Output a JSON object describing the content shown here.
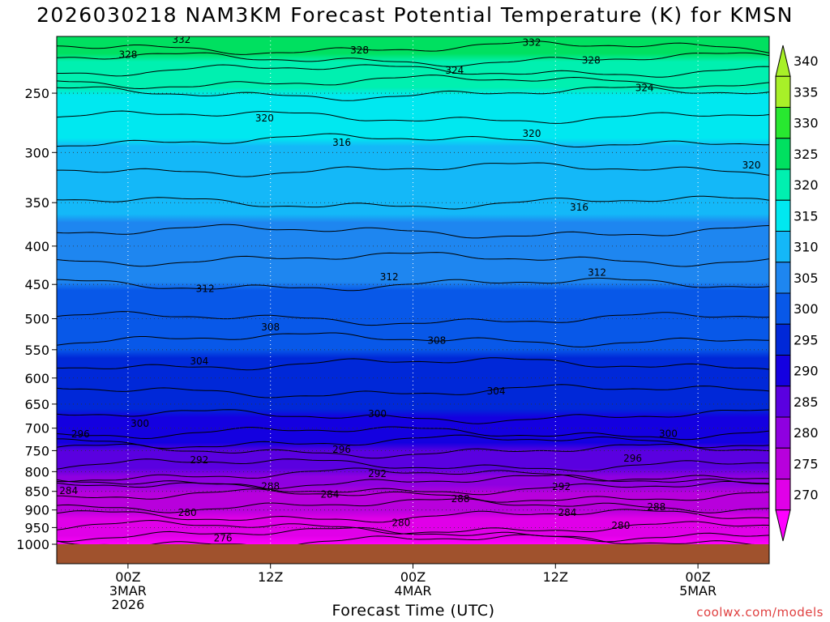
{
  "header": {
    "title": "2026030218 NAM3KM Forecast Potential Temperature (K) for KMSN"
  },
  "footer": {
    "credit": "coolwx.com/models"
  },
  "chart_data": {
    "type": "heatmap",
    "title": "2026030218 NAM3KM Forecast Potential Temperature (K) for KMSN",
    "xlabel": "Forecast Time (UTC)",
    "ylabel": "",
    "y_scale": "log-pressure",
    "y_ticks": [
      250,
      300,
      350,
      400,
      450,
      500,
      550,
      600,
      650,
      700,
      750,
      800,
      850,
      900,
      950,
      1000
    ],
    "y_range": [
      1000,
      210
    ],
    "x_ticks": [
      {
        "label": "00Z",
        "sub1": "3MAR",
        "sub2": "2026",
        "hour": 6
      },
      {
        "label": "12Z",
        "sub1": "",
        "sub2": "",
        "hour": 18
      },
      {
        "label": "00Z",
        "sub1": "4MAR",
        "sub2": "",
        "hour": 30
      },
      {
        "label": "12Z",
        "sub1": "",
        "sub2": "",
        "hour": 42
      },
      {
        "label": "00Z",
        "sub1": "5MAR",
        "sub2": "",
        "hour": 54
      }
    ],
    "x_range_hours": [
      0,
      60
    ],
    "grid": true,
    "colorbar": {
      "levels": [
        270,
        275,
        280,
        285,
        290,
        295,
        300,
        305,
        310,
        315,
        320,
        325,
        330,
        335,
        340
      ],
      "colors": [
        "#ff00ff",
        "#e000e8",
        "#b800dc",
        "#8f00e0",
        "#5a00e0",
        "#1400e0",
        "#0028d8",
        "#0858e8",
        "#1e86f0",
        "#14b8f8",
        "#00e8f0",
        "#00f0b0",
        "#00e060",
        "#28e830",
        "#a8f028"
      ]
    },
    "isentropes_k": [
      274,
      276,
      278,
      280,
      282,
      284,
      286,
      288,
      290,
      292,
      294,
      296,
      298,
      300,
      302,
      304,
      306,
      308,
      310,
      312,
      314,
      316,
      318,
      320,
      322,
      324,
      326,
      328,
      330,
      332
    ],
    "theta_profile": [
      {
        "p": 1000,
        "theta": 273
      },
      {
        "p": 950,
        "theta": 278
      },
      {
        "p": 900,
        "theta": 281
      },
      {
        "p": 850,
        "theta": 285
      },
      {
        "p": 800,
        "theta": 291
      },
      {
        "p": 750,
        "theta": 294
      },
      {
        "p": 700,
        "theta": 299
      },
      {
        "p": 650,
        "theta": 301
      },
      {
        "p": 600,
        "theta": 303
      },
      {
        "p": 550,
        "theta": 305
      },
      {
        "p": 500,
        "theta": 308
      },
      {
        "p": 450,
        "theta": 310
      },
      {
        "p": 400,
        "theta": 313
      },
      {
        "p": 350,
        "theta": 316
      },
      {
        "p": 300,
        "theta": 319
      },
      {
        "p": 250,
        "theta": 324
      },
      {
        "p": 210,
        "theta": 334
      }
    ],
    "contour_labels": [
      {
        "text": "332",
        "hour": 10.5,
        "p": 212
      },
      {
        "text": "328",
        "hour": 6,
        "p": 222
      },
      {
        "text": "328",
        "hour": 25.5,
        "p": 219
      },
      {
        "text": "332",
        "hour": 40,
        "p": 214
      },
      {
        "text": "328",
        "hour": 45,
        "p": 226
      },
      {
        "text": "324",
        "hour": 33.5,
        "p": 233
      },
      {
        "text": "324",
        "hour": 49.5,
        "p": 246
      },
      {
        "text": "320",
        "hour": 17.5,
        "p": 270
      },
      {
        "text": "320",
        "hour": 40,
        "p": 283
      },
      {
        "text": "316",
        "hour": 24,
        "p": 291
      },
      {
        "text": "320",
        "hour": 58.5,
        "p": 312
      },
      {
        "text": "316",
        "hour": 44,
        "p": 355
      },
      {
        "text": "312",
        "hour": 12.5,
        "p": 456
      },
      {
        "text": "312",
        "hour": 28,
        "p": 440
      },
      {
        "text": "312",
        "hour": 45.5,
        "p": 434
      },
      {
        "text": "308",
        "hour": 18,
        "p": 513
      },
      {
        "text": "308",
        "hour": 32,
        "p": 535
      },
      {
        "text": "304",
        "hour": 12,
        "p": 570
      },
      {
        "text": "304",
        "hour": 37,
        "p": 625
      },
      {
        "text": "300",
        "hour": 7,
        "p": 690
      },
      {
        "text": "300",
        "hour": 27,
        "p": 670
      },
      {
        "text": "300",
        "hour": 51.5,
        "p": 712
      },
      {
        "text": "296",
        "hour": 2,
        "p": 713
      },
      {
        "text": "296",
        "hour": 24,
        "p": 747
      },
      {
        "text": "296",
        "hour": 48.5,
        "p": 768
      },
      {
        "text": "292",
        "hour": 12,
        "p": 772
      },
      {
        "text": "292",
        "hour": 27,
        "p": 805
      },
      {
        "text": "292",
        "hour": 42.5,
        "p": 838
      },
      {
        "text": "288",
        "hour": 18,
        "p": 837
      },
      {
        "text": "288",
        "hour": 34,
        "p": 870
      },
      {
        "text": "288",
        "hour": 50.5,
        "p": 892
      },
      {
        "text": "284",
        "hour": 1,
        "p": 848
      },
      {
        "text": "284",
        "hour": 23,
        "p": 858
      },
      {
        "text": "284",
        "hour": 43,
        "p": 908
      },
      {
        "text": "280",
        "hour": 11,
        "p": 907
      },
      {
        "text": "280",
        "hour": 29,
        "p": 936
      },
      {
        "text": "280",
        "hour": 47.5,
        "p": 944
      },
      {
        "text": "276",
        "hour": 14,
        "p": 982
      }
    ],
    "ground": {
      "color": "#a0522d",
      "from_p": 1000
    }
  }
}
